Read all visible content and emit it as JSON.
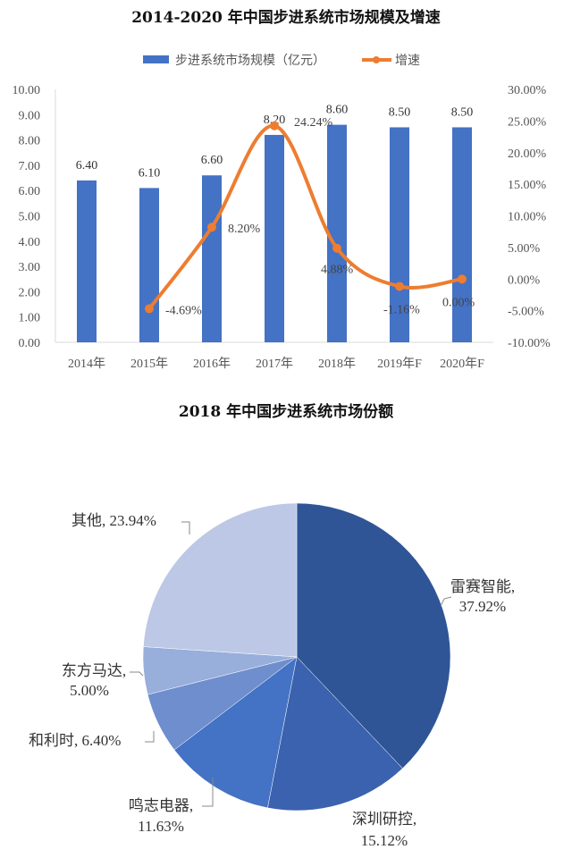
{
  "chart_data": [
    {
      "type": "bar+line",
      "title": "2014-2020 年中国步进系统市场规模及增速",
      "categories": [
        "2014年",
        "2015年",
        "2016年",
        "2017年",
        "2018年",
        "2019年F",
        "2020年F"
      ],
      "series": [
        {
          "name": "步进系统市场规模（亿元）",
          "type": "bar",
          "axis": "left",
          "color": "#4472C4",
          "values": [
            6.4,
            6.1,
            6.6,
            8.2,
            8.6,
            8.5,
            8.5
          ],
          "labels": [
            "6.40",
            "6.10",
            "6.60",
            "8.20",
            "8.60",
            "8.50",
            "8.50"
          ]
        },
        {
          "name": "增速",
          "type": "line",
          "axis": "right",
          "color": "#ED7D31",
          "values": [
            null,
            -4.69,
            8.2,
            24.24,
            4.88,
            -1.16,
            0.0
          ],
          "labels": [
            "",
            "-4.69%",
            "8.20%",
            "24.24%",
            "4.88%",
            "-1.16%",
            "0.00%"
          ]
        }
      ],
      "y_left": {
        "ticks": [
          "0.00",
          "1.00",
          "2.00",
          "3.00",
          "4.00",
          "5.00",
          "6.00",
          "7.00",
          "8.00",
          "9.00",
          "10.00"
        ],
        "ylim": [
          0,
          10
        ]
      },
      "y_right": {
        "ticks": [
          "-10.00%",
          "-5.00%",
          "0.00%",
          "5.00%",
          "10.00%",
          "15.00%",
          "20.00%",
          "25.00%",
          "30.00%"
        ],
        "ylim": [
          -10,
          30
        ]
      },
      "legend": {
        "position": "top",
        "items": [
          "步进系统市场规模（亿元）",
          "增速"
        ]
      },
      "grid": false
    },
    {
      "type": "pie",
      "title": "2018 年中国步进系统市场份额",
      "slices": [
        {
          "label": "雷赛智能",
          "value": 37.92,
          "text": "37.92%",
          "color": "#2F5597"
        },
        {
          "label": "深圳研控",
          "value": 15.12,
          "text": "15.12%",
          "color": "#3A62AE"
        },
        {
          "label": "鸣志电器",
          "value": 11.63,
          "text": "11.63%",
          "color": "#4472C4"
        },
        {
          "label": "和利时",
          "value": 6.4,
          "text": "6.40%",
          "color": "#6E8ECE"
        },
        {
          "label": "东方马达",
          "value": 5.0,
          "text": "5.00%",
          "color": "#98AEDB"
        },
        {
          "label": "其他",
          "value": 23.94,
          "text": "23.94%",
          "color": "#BCC8E5"
        }
      ]
    }
  ],
  "labels": {
    "chart1_title": "2014-2020 年中国步进系统市场规模及增速",
    "chart2_title": "2018 年中国步进系统市场份额",
    "legend_bar": "步进系统市场规模（亿元）",
    "legend_line": "增速",
    "pie": {
      "l0a": "雷赛智能,",
      "l0b": "37.92%",
      "l1a": "深圳研控,",
      "l1b": "15.12%",
      "l2a": "鸣志电器,",
      "l2b": "11.63%",
      "l3": "和利时, 6.40%",
      "l4a": "东方马达,",
      "l4b": "5.00%",
      "l5": "其他, 23.94%"
    }
  }
}
